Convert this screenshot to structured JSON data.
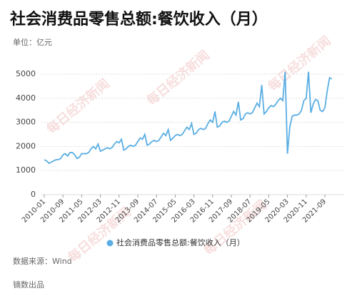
{
  "chart_data": {
    "type": "line",
    "title": "社会消费品零售总额:餐饮收入（月）",
    "subtitle": "单位：亿元",
    "source": "数据来源：Wind",
    "credit": "镝数出品",
    "watermark": "每日经济新闻",
    "categories": [
      "2010-01",
      null,
      null,
      null,
      null,
      null,
      null,
      null,
      "2010-09",
      null,
      null,
      null,
      null,
      null,
      null,
      null,
      "2011-05",
      null,
      null,
      null,
      null,
      null,
      null,
      null,
      "2012-03",
      null,
      null,
      null,
      null,
      null,
      null,
      null,
      "2012-11",
      null,
      null,
      null,
      null,
      null,
      null,
      null,
      "2013-09",
      null,
      null,
      null,
      null,
      null,
      null,
      null,
      "2014-07",
      null,
      null,
      null,
      null,
      null,
      null,
      null,
      "2015-05",
      null,
      null,
      null,
      null,
      null,
      null,
      null,
      "2016-03",
      null,
      null,
      null,
      null,
      null,
      null,
      null,
      "2016-11",
      null,
      null,
      null,
      null,
      null,
      null,
      null,
      "2017-09",
      null,
      null,
      null,
      null,
      null,
      null,
      null,
      "2018-07",
      null,
      null,
      null,
      null,
      null,
      null,
      null,
      "2019-05",
      null,
      null,
      null,
      null,
      null,
      null,
      null,
      "2020-03",
      null,
      null,
      null,
      null,
      null,
      null,
      null,
      "2020-11",
      null,
      null,
      null,
      null,
      null,
      null,
      null,
      "2021-09",
      null,
      null,
      null
    ],
    "series": [
      {
        "name": "社会消费品零售总额:餐饮收入（月）",
        "color": "#5aaee3",
        "values": [
          1450,
          1400,
          1300,
          1350,
          1400,
          1450,
          1450,
          1500,
          1650,
          1700,
          1600,
          1750,
          1750,
          1650,
          1500,
          1550,
          1700,
          1700,
          1700,
          1750,
          1900,
          2000,
          1900,
          2100,
          1800,
          1850,
          1900,
          1950,
          1900,
          1950,
          2100,
          2200,
          2150,
          2300,
          1850,
          1900,
          2000,
          2050,
          2000,
          2050,
          2200,
          2350,
          2300,
          2500,
          2050,
          2100,
          2200,
          2250,
          2200,
          2250,
          2400,
          2550,
          2450,
          2700,
          2250,
          2350,
          2450,
          2500,
          2450,
          2500,
          2650,
          2800,
          2700,
          2950,
          2500,
          2550,
          2700,
          2750,
          2700,
          2750,
          2950,
          3100,
          3000,
          3450,
          2800,
          2850,
          3000,
          3050,
          3000,
          3050,
          3250,
          3450,
          3300,
          3850,
          3100,
          3150,
          3350,
          3400,
          3350,
          3400,
          3600,
          3800,
          3650,
          4550,
          3350,
          3450,
          3600,
          3700,
          3650,
          3750,
          3900,
          4000,
          3900,
          5100,
          1700,
          2800,
          3250,
          3300,
          3300,
          3350,
          3500,
          3900,
          4000,
          5100,
          3400,
          3750,
          3950,
          3900,
          3500,
          3450,
          3600,
          4300,
          4850,
          4800
        ]
      }
    ],
    "ylim": [
      0,
      5000
    ],
    "yticks": [
      0,
      1000,
      2000,
      3000,
      4000,
      5000
    ],
    "grid": true
  }
}
